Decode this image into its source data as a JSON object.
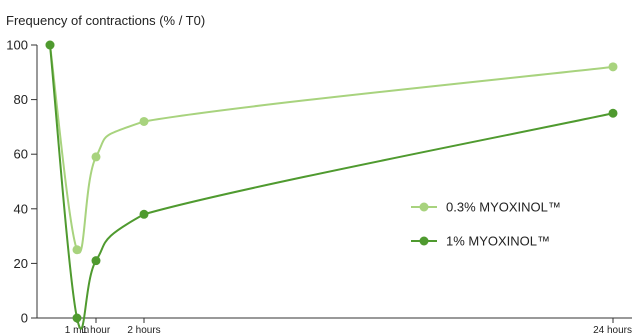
{
  "chart_data": {
    "type": "line",
    "title": "",
    "ylabel": "Frequency of contractions (% / T0)",
    "xlabel": "",
    "x_ticks": [
      "1 min",
      "1 hour",
      "2 hours",
      "24 hours"
    ],
    "y_ticks": [
      0,
      20,
      40,
      60,
      80,
      100
    ],
    "ylim": [
      0,
      100
    ],
    "grid": false,
    "legend_position": "right",
    "series": [
      {
        "name": "0.3% MYOXINOL™",
        "color": "#a8d37e",
        "points": [
          {
            "x": "T0",
            "y": 100
          },
          {
            "x": "1 min",
            "y": 25
          },
          {
            "x": "1 hour",
            "y": 59
          },
          {
            "x": "2 hours",
            "y": 72
          },
          {
            "x": "24 hours",
            "y": 92
          }
        ]
      },
      {
        "name": "1% MYOXINOL™",
        "color": "#4f9a2f",
        "points": [
          {
            "x": "T0",
            "y": 100
          },
          {
            "x": "1 min",
            "y": 0
          },
          {
            "x": "1 hour",
            "y": 21
          },
          {
            "x": "2 hours",
            "y": 38
          },
          {
            "x": "24 hours",
            "y": 75
          }
        ]
      }
    ]
  }
}
